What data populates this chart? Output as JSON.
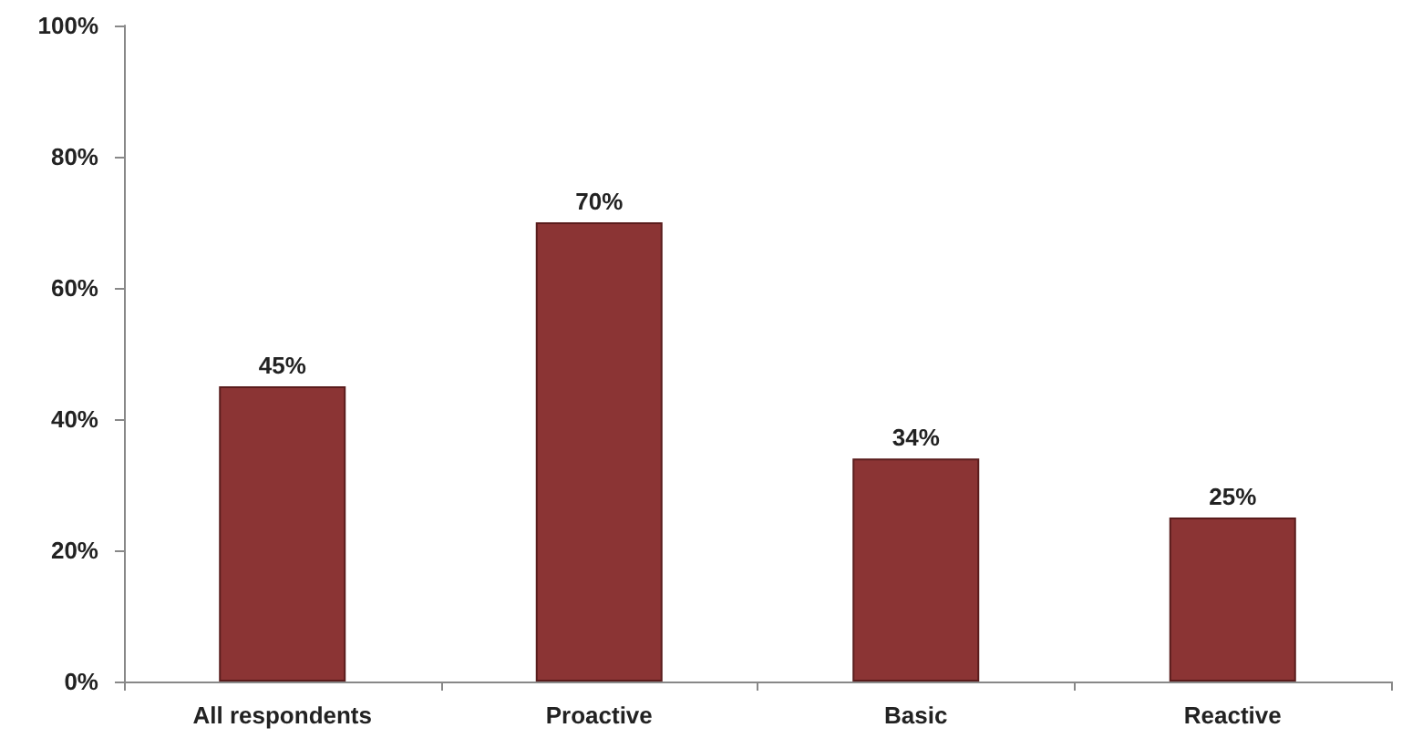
{
  "chart_data": {
    "type": "bar",
    "categories": [
      "All respondents",
      "Proactive",
      "Basic",
      "Reactive"
    ],
    "values": [
      45,
      70,
      34,
      25
    ],
    "value_labels": [
      "45%",
      "70%",
      "34%",
      "25%"
    ],
    "color": "#8b3434",
    "ylim": [
      0,
      100
    ],
    "yticks": [
      {
        "value": 0,
        "label": "0%"
      },
      {
        "value": 20,
        "label": "20%"
      },
      {
        "value": 40,
        "label": "40%"
      },
      {
        "value": 60,
        "label": "60%"
      },
      {
        "value": 80,
        "label": "80%"
      },
      {
        "value": 100,
        "label": "100%"
      }
    ],
    "grid": false
  }
}
